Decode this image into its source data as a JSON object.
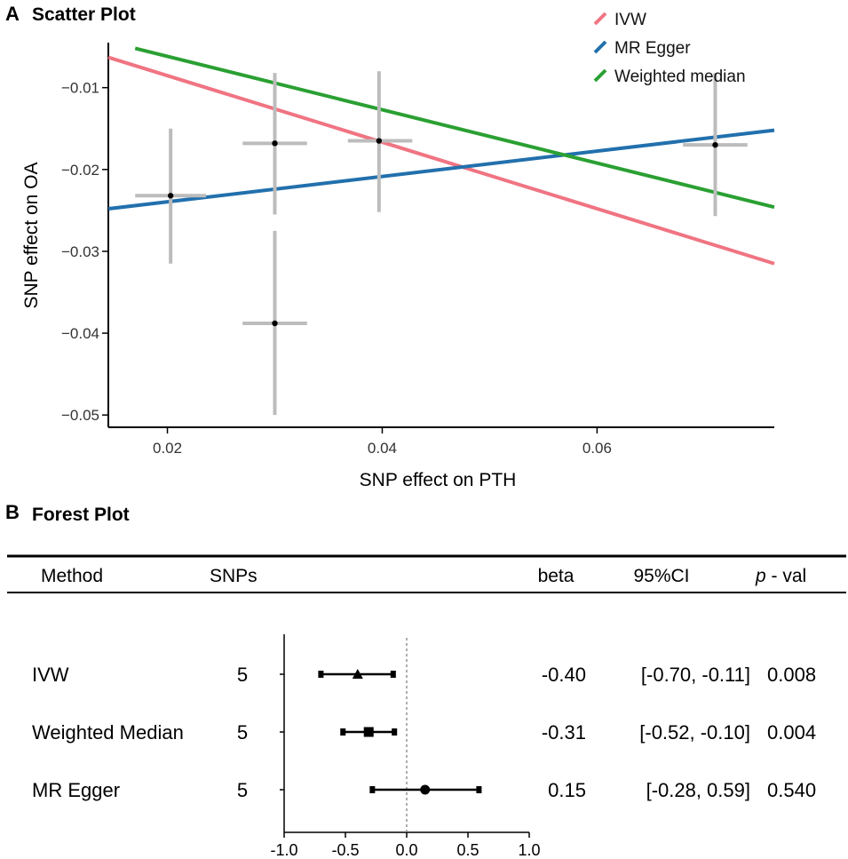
{
  "panel_a": {
    "letter": "A",
    "chart_data": {
      "type": "scatter",
      "title": "Scatter Plot",
      "xlabel": "SNP effect on PTH",
      "ylabel": "SNP effect on OA",
      "xlim": [
        0.0145,
        0.0765
      ],
      "ylim": [
        -0.0515,
        -0.0045
      ],
      "xticks": [
        0.02,
        0.04,
        0.06
      ],
      "xtick_labels": [
        "0.02",
        "0.04",
        "0.06"
      ],
      "yticks": [
        -0.01,
        -0.02,
        -0.03,
        -0.04,
        -0.05
      ],
      "ytick_labels": [
        "−0.01",
        "−0.02",
        "−0.03",
        "−0.04",
        "−0.05"
      ],
      "points": [
        {
          "x": 0.0203,
          "y": -0.0232,
          "x_lo": 0.017,
          "x_hi": 0.0236,
          "y_lo": -0.0315,
          "y_hi": -0.015
        },
        {
          "x": 0.03,
          "y": -0.0168,
          "x_lo": 0.027,
          "x_hi": 0.033,
          "y_lo": -0.0255,
          "y_hi": -0.0082
        },
        {
          "x": 0.03,
          "y": -0.0388,
          "x_lo": 0.027,
          "x_hi": 0.033,
          "y_lo": -0.05,
          "y_hi": -0.0275
        },
        {
          "x": 0.0397,
          "y": -0.0165,
          "x_lo": 0.0368,
          "x_hi": 0.0428,
          "y_lo": -0.0252,
          "y_hi": -0.008
        },
        {
          "x": 0.071,
          "y": -0.017,
          "x_lo": 0.068,
          "x_hi": 0.074,
          "y_lo": -0.0257,
          "y_hi": -0.0082
        }
      ],
      "series": [
        {
          "name": "IVW",
          "color": "#f07482",
          "x": [
            0.0145,
            0.0765
          ],
          "y": [
            -0.0063,
            -0.0315
          ]
        },
        {
          "name": "MR Egger",
          "color": "#2270ad",
          "x": [
            0.0145,
            0.0765
          ],
          "y": [
            -0.0248,
            -0.0152
          ]
        },
        {
          "name": "Weighted median",
          "color": "#2aa032",
          "x": [
            0.017,
            0.0765
          ],
          "y": [
            -0.0052,
            -0.0246
          ]
        }
      ],
      "legend": "top-right"
    }
  },
  "panel_b": {
    "letter": "B",
    "title": "Forest Plot",
    "headers": {
      "method": "Method",
      "snps": "SNPs",
      "beta": "beta",
      "ci": "95%CI",
      "p_italic": "p",
      "p_rest": " - val"
    },
    "rows": [
      {
        "method": "IVW",
        "snps": "5",
        "beta": "-0.40",
        "ci": "[-0.70, -0.11]",
        "pval": "0.008"
      },
      {
        "method": "Weighted Median",
        "snps": "5",
        "beta": "-0.31",
        "ci": "[-0.52, -0.10]",
        "pval": "0.004"
      },
      {
        "method": "MR Egger",
        "snps": "5",
        "beta": "0.15",
        "ci": "[-0.28, 0.59]",
        "pval": "0.540"
      }
    ],
    "chart_data": {
      "type": "forest",
      "xlim": [
        -1.0,
        1.0
      ],
      "xticks": [
        -1.0,
        -0.5,
        0.0,
        0.5,
        1.0
      ],
      "xtick_labels": [
        "-1.0",
        "-0.5",
        "0.0",
        "0.5",
        "1.0"
      ],
      "reference_line": 0,
      "estimates": [
        {
          "method": "IVW",
          "estimate": -0.4,
          "lo": -0.7,
          "hi": -0.11,
          "marker": "triangle"
        },
        {
          "method": "Weighted Median",
          "estimate": -0.31,
          "lo": -0.52,
          "hi": -0.1,
          "marker": "square"
        },
        {
          "method": "MR Egger",
          "estimate": 0.15,
          "lo": -0.28,
          "hi": 0.59,
          "marker": "circle"
        }
      ]
    }
  }
}
